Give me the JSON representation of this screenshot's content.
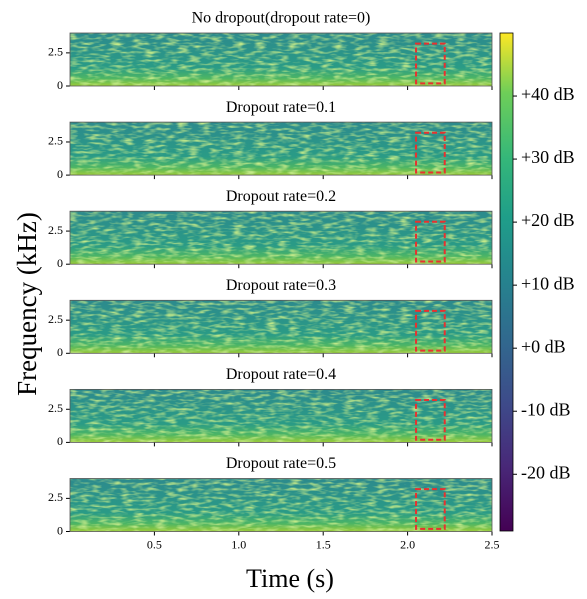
{
  "figure": {
    "xlabel": "Time (s)",
    "ylabel": "Frequency (kHz)",
    "colorbar": {
      "lim": [
        -29,
        50
      ],
      "ticks": [
        {
          "value": 40,
          "label": "+40 dB"
        },
        {
          "value": 30,
          "label": "+30 dB"
        },
        {
          "value": 20,
          "label": "+20 dB"
        },
        {
          "value": 10,
          "label": "+10 dB"
        },
        {
          "value": 0,
          "label": "+0 dB"
        },
        {
          "value": -10,
          "label": "-10 dB"
        },
        {
          "value": -20,
          "label": "-20 dB"
        }
      ]
    }
  },
  "chart_data": [
    {
      "type": "spectrogram",
      "title": "No dropout(dropout rate=0)",
      "xlim": [
        0,
        2.5
      ],
      "ylim": [
        0,
        4
      ],
      "xticks": [
        0.5,
        {
          "value": 1,
          "label": "1.0"
        },
        1.5,
        {
          "value": 2,
          "label": "2.0"
        },
        2.5
      ],
      "yticks": [
        0,
        2.5
      ],
      "highlight": {
        "x": [
          2.05,
          2.22
        ],
        "y": [
          0.2,
          3.2
        ],
        "color": "#e8312f"
      }
    },
    {
      "type": "spectrogram",
      "title": "Dropout rate=0.1",
      "xlim": [
        0,
        2.5
      ],
      "ylim": [
        0,
        4
      ],
      "xticks": [
        0.5,
        {
          "value": 1,
          "label": "1.0"
        },
        1.5,
        {
          "value": 2,
          "label": "2.0"
        },
        2.5
      ],
      "yticks": [
        0,
        2.5
      ],
      "highlight": {
        "x": [
          2.05,
          2.22
        ],
        "y": [
          0.2,
          3.2
        ],
        "color": "#e8312f"
      }
    },
    {
      "type": "spectrogram",
      "title": "Dropout rate=0.2",
      "xlim": [
        0,
        2.5
      ],
      "ylim": [
        0,
        4
      ],
      "xticks": [
        0.5,
        {
          "value": 1,
          "label": "1.0"
        },
        1.5,
        {
          "value": 2,
          "label": "2.0"
        },
        2.5
      ],
      "yticks": [
        0,
        2.5
      ],
      "highlight": {
        "x": [
          2.05,
          2.22
        ],
        "y": [
          0.2,
          3.2
        ],
        "color": "#e8312f"
      }
    },
    {
      "type": "spectrogram",
      "title": "Dropout rate=0.3",
      "xlim": [
        0,
        2.5
      ],
      "ylim": [
        0,
        4
      ],
      "xticks": [
        0.5,
        {
          "value": 1,
          "label": "1.0"
        },
        1.5,
        {
          "value": 2,
          "label": "2.0"
        },
        2.5
      ],
      "yticks": [
        0,
        2.5
      ],
      "highlight": {
        "x": [
          2.05,
          2.22
        ],
        "y": [
          0.2,
          3.2
        ],
        "color": "#e8312f"
      }
    },
    {
      "type": "spectrogram",
      "title": "Dropout rate=0.4",
      "xlim": [
        0,
        2.5
      ],
      "ylim": [
        0,
        4
      ],
      "xticks": [
        0.5,
        {
          "value": 1,
          "label": "1.0"
        },
        1.5,
        {
          "value": 2,
          "label": "2.0"
        },
        2.5
      ],
      "yticks": [
        0,
        2.5
      ],
      "highlight": {
        "x": [
          2.05,
          2.22
        ],
        "y": [
          0.2,
          3.2
        ],
        "color": "#e8312f"
      }
    },
    {
      "type": "spectrogram",
      "title": "Dropout rate=0.5",
      "xlim": [
        0,
        2.5
      ],
      "ylim": [
        0,
        4
      ],
      "xticks": [
        0.5,
        {
          "value": 1,
          "label": "1.0"
        },
        1.5,
        {
          "value": 2,
          "label": "2.0"
        },
        2.5
      ],
      "yticks": [
        0,
        2.5
      ],
      "highlight": {
        "x": [
          2.05,
          2.22
        ],
        "y": [
          0.2,
          3.2
        ],
        "color": "#e8312f"
      }
    }
  ]
}
